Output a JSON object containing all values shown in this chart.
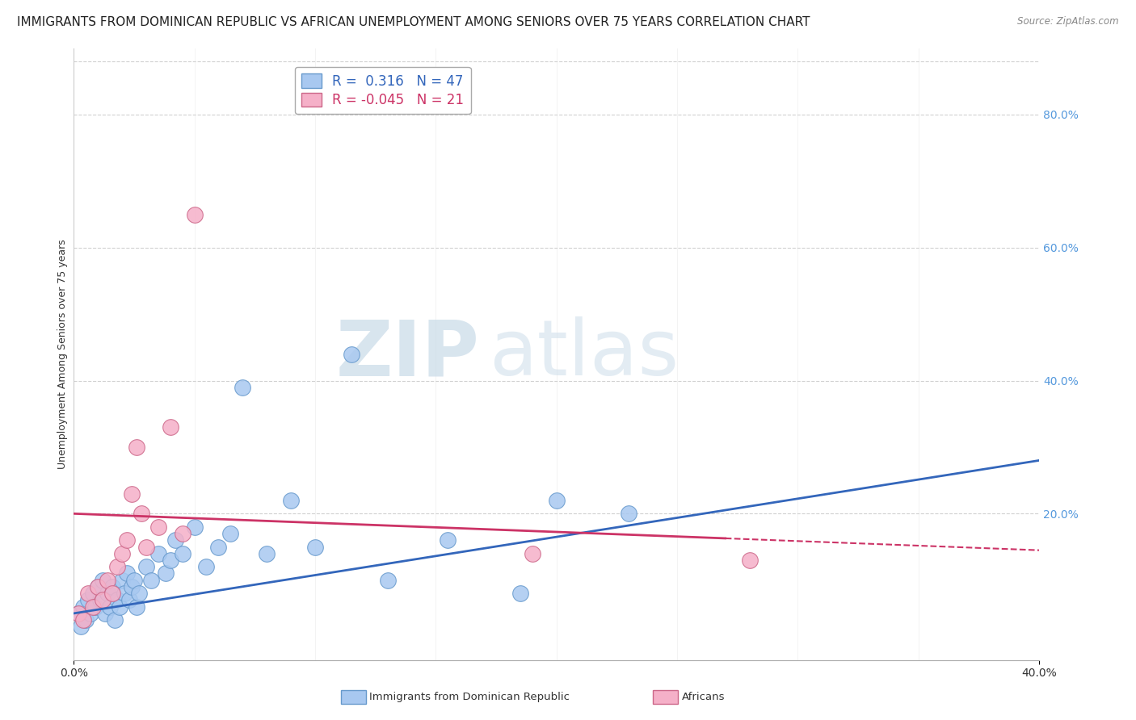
{
  "title": "IMMIGRANTS FROM DOMINICAN REPUBLIC VS AFRICAN UNEMPLOYMENT AMONG SENIORS OVER 75 YEARS CORRELATION CHART",
  "source": "Source: ZipAtlas.com",
  "ylabel": "Unemployment Among Seniors over 75 years",
  "xlim": [
    0.0,
    0.4
  ],
  "ylim": [
    -0.02,
    0.9
  ],
  "x_ticks": [
    0.0,
    0.4
  ],
  "x_tick_labels": [
    "0.0%",
    "40.0%"
  ],
  "y_ticks_right": [
    0.2,
    0.4,
    0.6,
    0.8
  ],
  "y_tick_labels_right": [
    "20.0%",
    "40.0%",
    "60.0%",
    "80.0%"
  ],
  "series1_color": "#a8c8f0",
  "series1_edge": "#6699cc",
  "series2_color": "#f5b0c8",
  "series2_edge": "#cc6688",
  "trend1_color": "#3366bb",
  "trend2_color": "#cc3366",
  "watermark_color": "#d8e8f0",
  "background_color": "#ffffff",
  "grid_color": "#cccccc",
  "series1_x": [
    0.002,
    0.003,
    0.004,
    0.005,
    0.006,
    0.007,
    0.008,
    0.009,
    0.01,
    0.011,
    0.012,
    0.013,
    0.014,
    0.015,
    0.016,
    0.017,
    0.018,
    0.019,
    0.02,
    0.021,
    0.022,
    0.023,
    0.024,
    0.025,
    0.026,
    0.027,
    0.03,
    0.032,
    0.035,
    0.038,
    0.04,
    0.042,
    0.045,
    0.05,
    0.055,
    0.06,
    0.065,
    0.07,
    0.08,
    0.09,
    0.1,
    0.115,
    0.13,
    0.155,
    0.185,
    0.2,
    0.23
  ],
  "series1_y": [
    0.05,
    0.03,
    0.06,
    0.04,
    0.07,
    0.05,
    0.08,
    0.06,
    0.09,
    0.07,
    0.1,
    0.05,
    0.08,
    0.06,
    0.09,
    0.04,
    0.07,
    0.06,
    0.1,
    0.08,
    0.11,
    0.07,
    0.09,
    0.1,
    0.06,
    0.08,
    0.12,
    0.1,
    0.14,
    0.11,
    0.13,
    0.16,
    0.14,
    0.18,
    0.12,
    0.15,
    0.17,
    0.39,
    0.14,
    0.22,
    0.15,
    0.44,
    0.1,
    0.16,
    0.08,
    0.22,
    0.2
  ],
  "series2_x": [
    0.002,
    0.004,
    0.006,
    0.008,
    0.01,
    0.012,
    0.014,
    0.016,
    0.018,
    0.02,
    0.022,
    0.024,
    0.026,
    0.028,
    0.03,
    0.035,
    0.04,
    0.045,
    0.05,
    0.19,
    0.28
  ],
  "series2_y": [
    0.05,
    0.04,
    0.08,
    0.06,
    0.09,
    0.07,
    0.1,
    0.08,
    0.12,
    0.14,
    0.16,
    0.23,
    0.3,
    0.2,
    0.15,
    0.18,
    0.33,
    0.17,
    0.65,
    0.14,
    0.13
  ],
  "title_fontsize": 11,
  "axis_label_fontsize": 9,
  "tick_fontsize": 10,
  "legend_fontsize": 12
}
